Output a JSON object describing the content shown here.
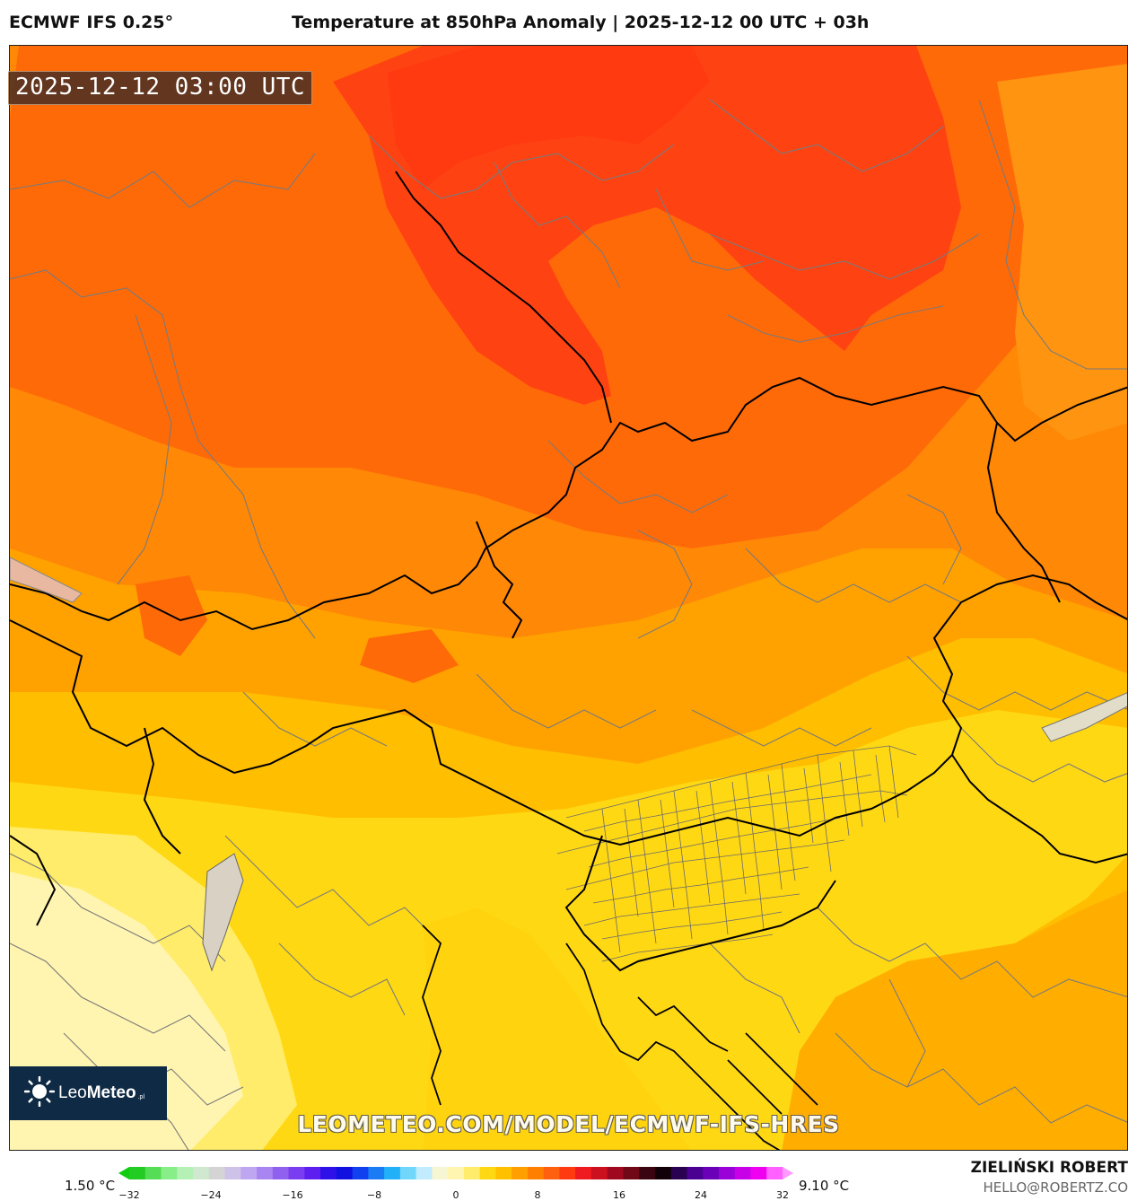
{
  "header": {
    "model": "ECMWF IFS 0.25°",
    "title": "Temperature at 850hPa Anomaly | 2025-12-12 00 UTC + 03h"
  },
  "map": {
    "valid_time": "2025-12-12 03:00 UTC",
    "watermark": "LEOMETEO.COM/MODEL/ECMWF-IFS-HRES"
  },
  "logo": {
    "name_light": "Leo",
    "name_bold": "Meteo",
    "suffix": ".pl"
  },
  "legend": {
    "min_label": "1.50 °C",
    "max_label": "9.10 °C",
    "range": [
      -32,
      32
    ],
    "ticks": [
      {
        "value": -32,
        "label": "−32"
      },
      {
        "value": -24,
        "label": "−24"
      },
      {
        "value": -16,
        "label": "−16"
      },
      {
        "value": -8,
        "label": "−8"
      },
      {
        "value": 0,
        "label": "0"
      },
      {
        "value": 8,
        "label": "8"
      },
      {
        "value": 16,
        "label": "16"
      },
      {
        "value": 24,
        "label": "24"
      },
      {
        "value": 32,
        "label": "32"
      }
    ],
    "colors": [
      "#22cc22",
      "#55dd55",
      "#88ee88",
      "#b5f0b5",
      "#cfe8cf",
      "#d4d4d4",
      "#cfc2e8",
      "#bfa6f0",
      "#a885f0",
      "#9060ee",
      "#7a3ef0",
      "#5c1ff0",
      "#2e10e8",
      "#1010e0",
      "#1040f0",
      "#1a7bf5",
      "#22b0f8",
      "#70d7fb",
      "#c0ecfd",
      "#f6f6d2",
      "#fff5b0",
      "#ffec6a",
      "#ffd814",
      "#ffc000",
      "#ffa000",
      "#ff8000",
      "#ff6010",
      "#ff3a10",
      "#ee1a20",
      "#cc1020",
      "#a00820",
      "#700818",
      "#3a0410",
      "#120008",
      "#2a0050",
      "#4a0090",
      "#6a00b8",
      "#9a00d8",
      "#c800e8",
      "#f000f0",
      "#ff60ff"
    ],
    "under_color": "#11cc11",
    "over_color": "#ff99ff"
  },
  "credits": {
    "author": "ZIELIŃSKI ROBERT",
    "email": "HELLO@ROBERTZ.CO"
  }
}
